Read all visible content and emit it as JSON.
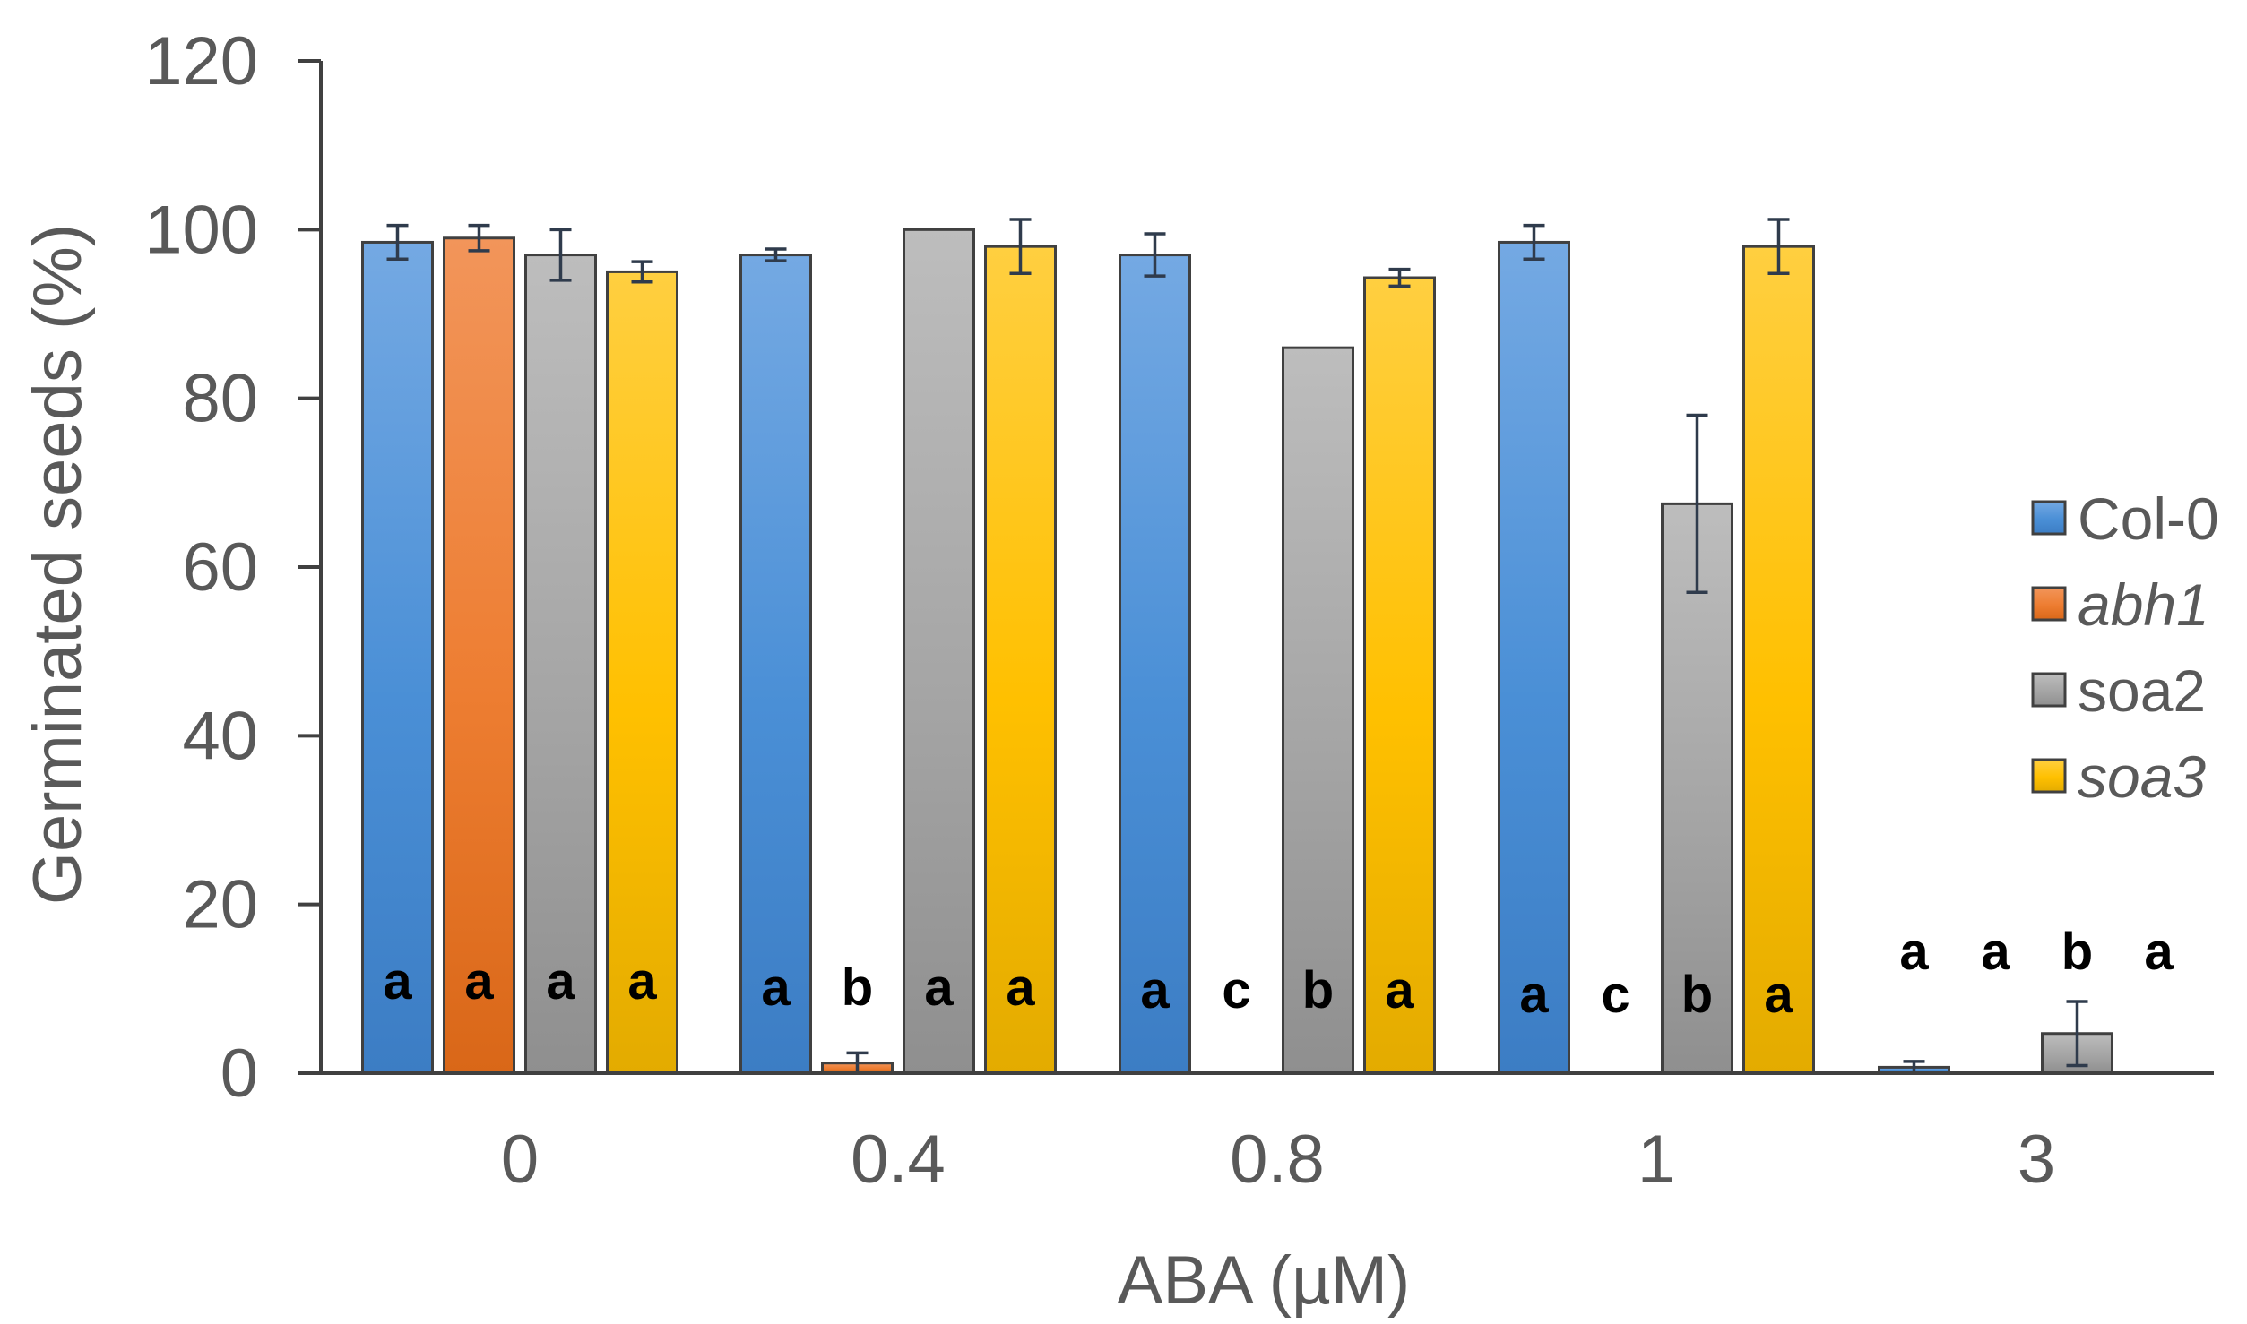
{
  "chart_data": {
    "type": "bar",
    "title": "",
    "xlabel": "ABA (µM)",
    "ylabel": "Germinated seeds (%)",
    "ylim": [
      0,
      120
    ],
    "yticks": [
      "0",
      "20",
      "40",
      "60",
      "80",
      "100",
      "120"
    ],
    "categories": [
      "0",
      "0.4",
      "0.8",
      "1",
      "3"
    ],
    "legend_position": "right",
    "series": [
      {
        "name": "Col-0",
        "italic": false,
        "color": "#4a8fd6",
        "color_light": "#74a9e3",
        "color_dark": "#3c7dc4",
        "values": [
          98.5,
          97,
          97,
          98.5,
          0.7
        ],
        "errors": [
          2,
          0.7,
          2.5,
          2,
          0.7
        ],
        "letters": [
          "a",
          "a",
          "a",
          "a",
          "a"
        ]
      },
      {
        "name": "abh1",
        "italic": true,
        "color": "#ed7d31",
        "color_light": "#f2955a",
        "color_dark": "#d96718",
        "values": [
          99,
          1.2,
          0,
          0,
          0
        ],
        "errors": [
          1.5,
          1.2,
          0,
          0,
          0
        ],
        "letters": [
          "a",
          "b",
          "c",
          "c",
          "a"
        ]
      },
      {
        "name": "soa2",
        "italic": false,
        "color": "#a5a5a5",
        "color_light": "#bdbdbd",
        "color_dark": "#8f8f8f",
        "values": [
          97,
          100,
          86,
          67.5,
          4.7
        ],
        "errors": [
          3,
          0,
          0,
          10.5,
          3.8
        ],
        "letters": [
          "a",
          "a",
          "b",
          "b",
          "b"
        ]
      },
      {
        "name": "soa3",
        "italic": true,
        "color": "#ffc000",
        "color_light": "#ffcf40",
        "color_dark": "#e3ab00",
        "values": [
          95,
          98,
          94.3,
          98,
          0
        ],
        "errors": [
          1.2,
          3.2,
          1,
          3.2,
          0
        ],
        "letters": [
          "a",
          "a",
          "a",
          "a",
          "a"
        ]
      }
    ]
  }
}
